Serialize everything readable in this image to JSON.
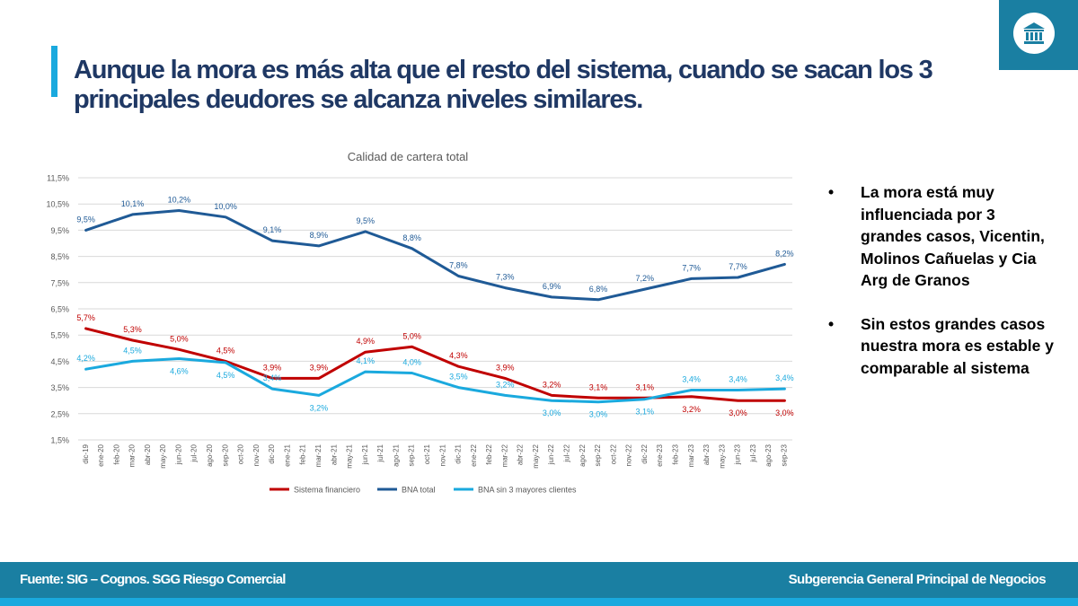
{
  "slide": {
    "title": "Aunque la mora es más alta que el resto del sistema, cuando se sacan los 3 principales deudores se alcanza niveles similares.",
    "logo_icon": "bank-building-icon",
    "bullets": [
      "La mora está muy influenciada por 3 grandes casos, Vicentin, Molinos Cañuelas y Cia Arg de Granos",
      "Sin estos grandes casos nuestra mora es estable y comparable al sistema"
    ],
    "bullet_glyph": "•"
  },
  "footer": {
    "source": "Fuente:  SIG – Cognos. SGG Riesgo Comercial",
    "unit": "Subgerencia General Principal de Negocios"
  },
  "colors": {
    "title": "#1f3864",
    "accent": "#1aa9de",
    "footer": "#1a7fa2"
  },
  "chart_data": {
    "type": "line",
    "title": "Calidad de cartera total",
    "categories": [
      "dic-19",
      "ene-20",
      "feb-20",
      "mar-20",
      "abr-20",
      "may-20",
      "jun-20",
      "jul-20",
      "ago-20",
      "sep-20",
      "oct-20",
      "nov-20",
      "dic-20",
      "ene-21",
      "feb-21",
      "mar-21",
      "abr-21",
      "may-21",
      "jun-21",
      "jul-21",
      "ago-21",
      "sep-21",
      "oct-21",
      "nov-21",
      "dic-21",
      "ene-22",
      "feb-22",
      "mar-22",
      "abr-22",
      "may-22",
      "jun-22",
      "jul-22",
      "ago-22",
      "sep-22",
      "oct-22",
      "nov-22",
      "dic-22",
      "ene-23",
      "feb-23",
      "mar-23",
      "abr-23",
      "may-23",
      "jun-23",
      "jul-23",
      "ago-23",
      "sep-23"
    ],
    "yticks": [
      "1,5%",
      "2,5%",
      "3,5%",
      "4,5%",
      "5,5%",
      "6,5%",
      "7,5%",
      "8,5%",
      "9,5%",
      "10,5%",
      "11,5%"
    ],
    "ylim": [
      1.5,
      11.5
    ],
    "grid": true,
    "legend_position": "bottom",
    "series": [
      {
        "name": "Sistema financiero",
        "color": "#c00000",
        "x": [
          0,
          3,
          6,
          9,
          12,
          15,
          18,
          21,
          24,
          27,
          30,
          33,
          36,
          39,
          42,
          45
        ],
        "values": [
          5.75,
          5.3,
          4.95,
          4.5,
          3.85,
          3.85,
          4.85,
          5.05,
          4.3,
          3.85,
          3.2,
          3.1,
          3.1,
          3.15,
          3.0,
          3.0
        ],
        "labels": [
          "5,7%",
          "5,3%",
          "5,0%",
          "4,5%",
          "3,9%",
          "3,9%",
          "4,9%",
          "5,0%",
          "4,3%",
          "3,9%",
          "3,2%",
          "3,1%",
          "3,1%",
          "3,2%",
          "3,0%",
          "3,0%"
        ],
        "label_side": [
          "above",
          "above",
          "above",
          "above",
          "above",
          "above",
          "above",
          "above",
          "above",
          "above",
          "above",
          "above",
          "above",
          "below",
          "below",
          "below"
        ]
      },
      {
        "name": "BNA total",
        "color": "#1f5a96",
        "x": [
          0,
          3,
          6,
          9,
          12,
          15,
          18,
          21,
          24,
          27,
          30,
          33,
          36,
          39,
          42,
          45
        ],
        "values": [
          9.5,
          10.1,
          10.25,
          10.0,
          9.1,
          8.9,
          9.45,
          8.8,
          7.75,
          7.3,
          6.95,
          6.85,
          7.25,
          7.65,
          7.7,
          8.2
        ],
        "labels": [
          "9,5%",
          "10,1%",
          "10,2%",
          "10,0%",
          "9,1%",
          "8,9%",
          "9,5%",
          "8,8%",
          "7,8%",
          "7,3%",
          "6,9%",
          "6,8%",
          "7,2%",
          "7,7%",
          "7,7%",
          "8,2%"
        ],
        "label_side": [
          "above",
          "above",
          "above",
          "above",
          "above",
          "above",
          "above",
          "above",
          "above",
          "above",
          "above",
          "above",
          "above",
          "above",
          "above",
          "above"
        ]
      },
      {
        "name": "BNA sin 3 mayores clientes",
        "color": "#1aa9de",
        "x": [
          0,
          3,
          6,
          9,
          12,
          15,
          18,
          21,
          24,
          27,
          30,
          33,
          36,
          39,
          42,
          45
        ],
        "values": [
          4.2,
          4.5,
          4.6,
          4.45,
          3.45,
          3.2,
          4.1,
          4.05,
          3.5,
          3.2,
          3.0,
          2.95,
          3.05,
          3.4,
          3.4,
          3.45
        ],
        "labels": [
          "4,2%",
          "4,5%",
          "4,6%",
          "4,5%",
          "3,4%",
          "3,2%",
          "4,1%",
          "4,0%",
          "3,5%",
          "3,2%",
          "3,0%",
          "3,0%",
          "3,1%",
          "3,4%",
          "3,4%",
          "3,4%"
        ],
        "label_side": [
          "above",
          "above",
          "below",
          "below",
          "above",
          "below",
          "above",
          "above",
          "above",
          "above",
          "below",
          "below",
          "below",
          "above",
          "above",
          "above"
        ]
      }
    ]
  }
}
